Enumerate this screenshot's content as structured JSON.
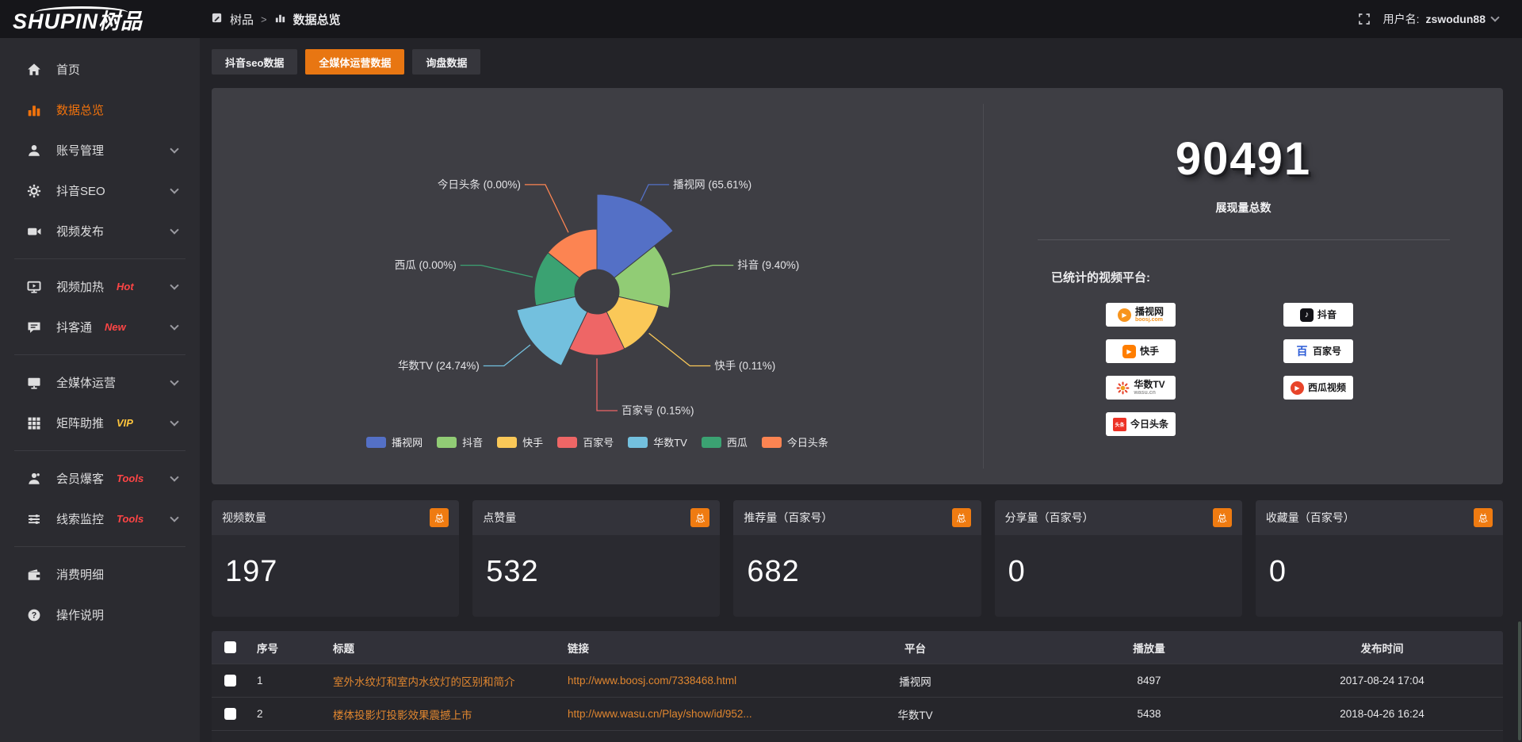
{
  "topbar": {
    "logo": "SHUPIN树品",
    "breadcrumb": {
      "root": "树品",
      "separator": ">",
      "current": "数据总览"
    },
    "user_prefix": "用户名:",
    "username": "zswodun88"
  },
  "sidebar": {
    "items": [
      {
        "label": "首页",
        "icon": "home-icon",
        "active": false,
        "chevron": false,
        "badge": null,
        "group": 0
      },
      {
        "label": "数据总览",
        "icon": "bar-chart-icon",
        "active": true,
        "chevron": false,
        "badge": null,
        "group": 0
      },
      {
        "label": "账号管理",
        "icon": "user-icon",
        "active": false,
        "chevron": true,
        "badge": null,
        "group": 0
      },
      {
        "label": "抖音SEO",
        "icon": "gear-icon",
        "active": false,
        "chevron": true,
        "badge": null,
        "group": 0
      },
      {
        "label": "视频发布",
        "icon": "video-camera-icon",
        "active": false,
        "chevron": true,
        "badge": null,
        "group": 0
      },
      {
        "label": "视频加热",
        "icon": "monitor-play-icon",
        "active": false,
        "chevron": true,
        "badge": {
          "text": "Hot",
          "color": "#ff4545"
        },
        "group": 1
      },
      {
        "label": "抖客通",
        "icon": "chat-icon",
        "active": false,
        "chevron": true,
        "badge": {
          "text": "New",
          "color": "#ff4545"
        },
        "group": 1
      },
      {
        "label": "全媒体运营",
        "icon": "monitor-icon",
        "active": false,
        "chevron": true,
        "badge": null,
        "group": 2
      },
      {
        "label": "矩阵助推",
        "icon": "grid-icon",
        "active": false,
        "chevron": true,
        "badge": {
          "text": "VIP",
          "color": "#ffc53d"
        },
        "group": 2
      },
      {
        "label": "会员爆客",
        "icon": "member-icon",
        "active": false,
        "chevron": true,
        "badge": {
          "text": "Tools",
          "color": "#ff4545"
        },
        "group": 3
      },
      {
        "label": "线索监控",
        "icon": "sliders-icon",
        "active": false,
        "chevron": true,
        "badge": {
          "text": "Tools",
          "color": "#ff4545"
        },
        "group": 3
      },
      {
        "label": "消费明细",
        "icon": "wallet-icon",
        "active": false,
        "chevron": false,
        "badge": null,
        "group": 4
      },
      {
        "label": "操作说明",
        "icon": "question-icon",
        "active": false,
        "chevron": false,
        "badge": null,
        "group": 4
      }
    ]
  },
  "tabs": [
    {
      "label": "抖音seo数据",
      "active": false
    },
    {
      "label": "全媒体运营数据",
      "active": true
    },
    {
      "label": "询盘数据",
      "active": false
    }
  ],
  "chart_data": {
    "type": "pie",
    "variant": "nightingale-rose",
    "value_unit": "percent",
    "legend_position": "bottom",
    "items": [
      {
        "name": "播视网",
        "value": 65.61,
        "color": "#5470c6"
      },
      {
        "name": "抖音",
        "value": 9.4,
        "color": "#91cc75"
      },
      {
        "name": "快手",
        "value": 0.11,
        "color": "#fac858"
      },
      {
        "name": "百家号",
        "value": 0.15,
        "color": "#ee6666"
      },
      {
        "name": "华数TV",
        "value": 24.74,
        "color": "#73c0de"
      },
      {
        "name": "西瓜",
        "value": 0.0,
        "color": "#3ba272"
      },
      {
        "name": "今日头条",
        "value": 0.0,
        "color": "#fc8452"
      }
    ]
  },
  "summary": {
    "total_value": "90491",
    "total_label": "展现量总数",
    "platforms_label": "已统计的视频平台:",
    "platform_columns": [
      [
        {
          "name": "播视网",
          "sub": "boosj.com",
          "icon": "boosj-icon"
        },
        {
          "name": "快手",
          "sub": "",
          "icon": "kuaishou-icon"
        },
        {
          "name": "华数TV",
          "sub": "wasu.cn",
          "icon": "wasu-icon"
        },
        {
          "name": "今日头条",
          "sub": "",
          "icon": "toutiao-icon"
        }
      ],
      [
        {
          "name": "抖音",
          "sub": "",
          "icon": "douyin-icon"
        },
        {
          "name": "百家号",
          "sub": "",
          "icon": "baijiahao-icon"
        },
        {
          "name": "西瓜视频",
          "sub": "",
          "icon": "xigua-icon"
        }
      ]
    ]
  },
  "stat_cards": [
    {
      "title": "视频数量",
      "badge": "总",
      "value": "197"
    },
    {
      "title": "点赞量",
      "badge": "总",
      "value": "532"
    },
    {
      "title": "推荐量（百家号）",
      "badge": "总",
      "value": "682"
    },
    {
      "title": "分享量（百家号）",
      "badge": "总",
      "value": "0"
    },
    {
      "title": "收藏量（百家号）",
      "badge": "总",
      "value": "0"
    }
  ],
  "table": {
    "headers": [
      "序号",
      "标题",
      "链接",
      "平台",
      "播放量",
      "发布时间"
    ],
    "rows": [
      {
        "no": "1",
        "title": "室外水纹灯和室内水纹灯的区别和简介",
        "link": "http://www.boosj.com/7338468.html",
        "platform": "播视网",
        "plays": "8497",
        "time": "2017-08-24 17:04"
      },
      {
        "no": "2",
        "title": "楼体投影灯投影效果震撼上市",
        "link": "http://www.wasu.cn/Play/show/id/952...",
        "platform": "华数TV",
        "plays": "5438",
        "time": "2018-04-26 16:24"
      }
    ]
  },
  "colors": {
    "accent": "#e87612",
    "link": "#e0862f"
  }
}
